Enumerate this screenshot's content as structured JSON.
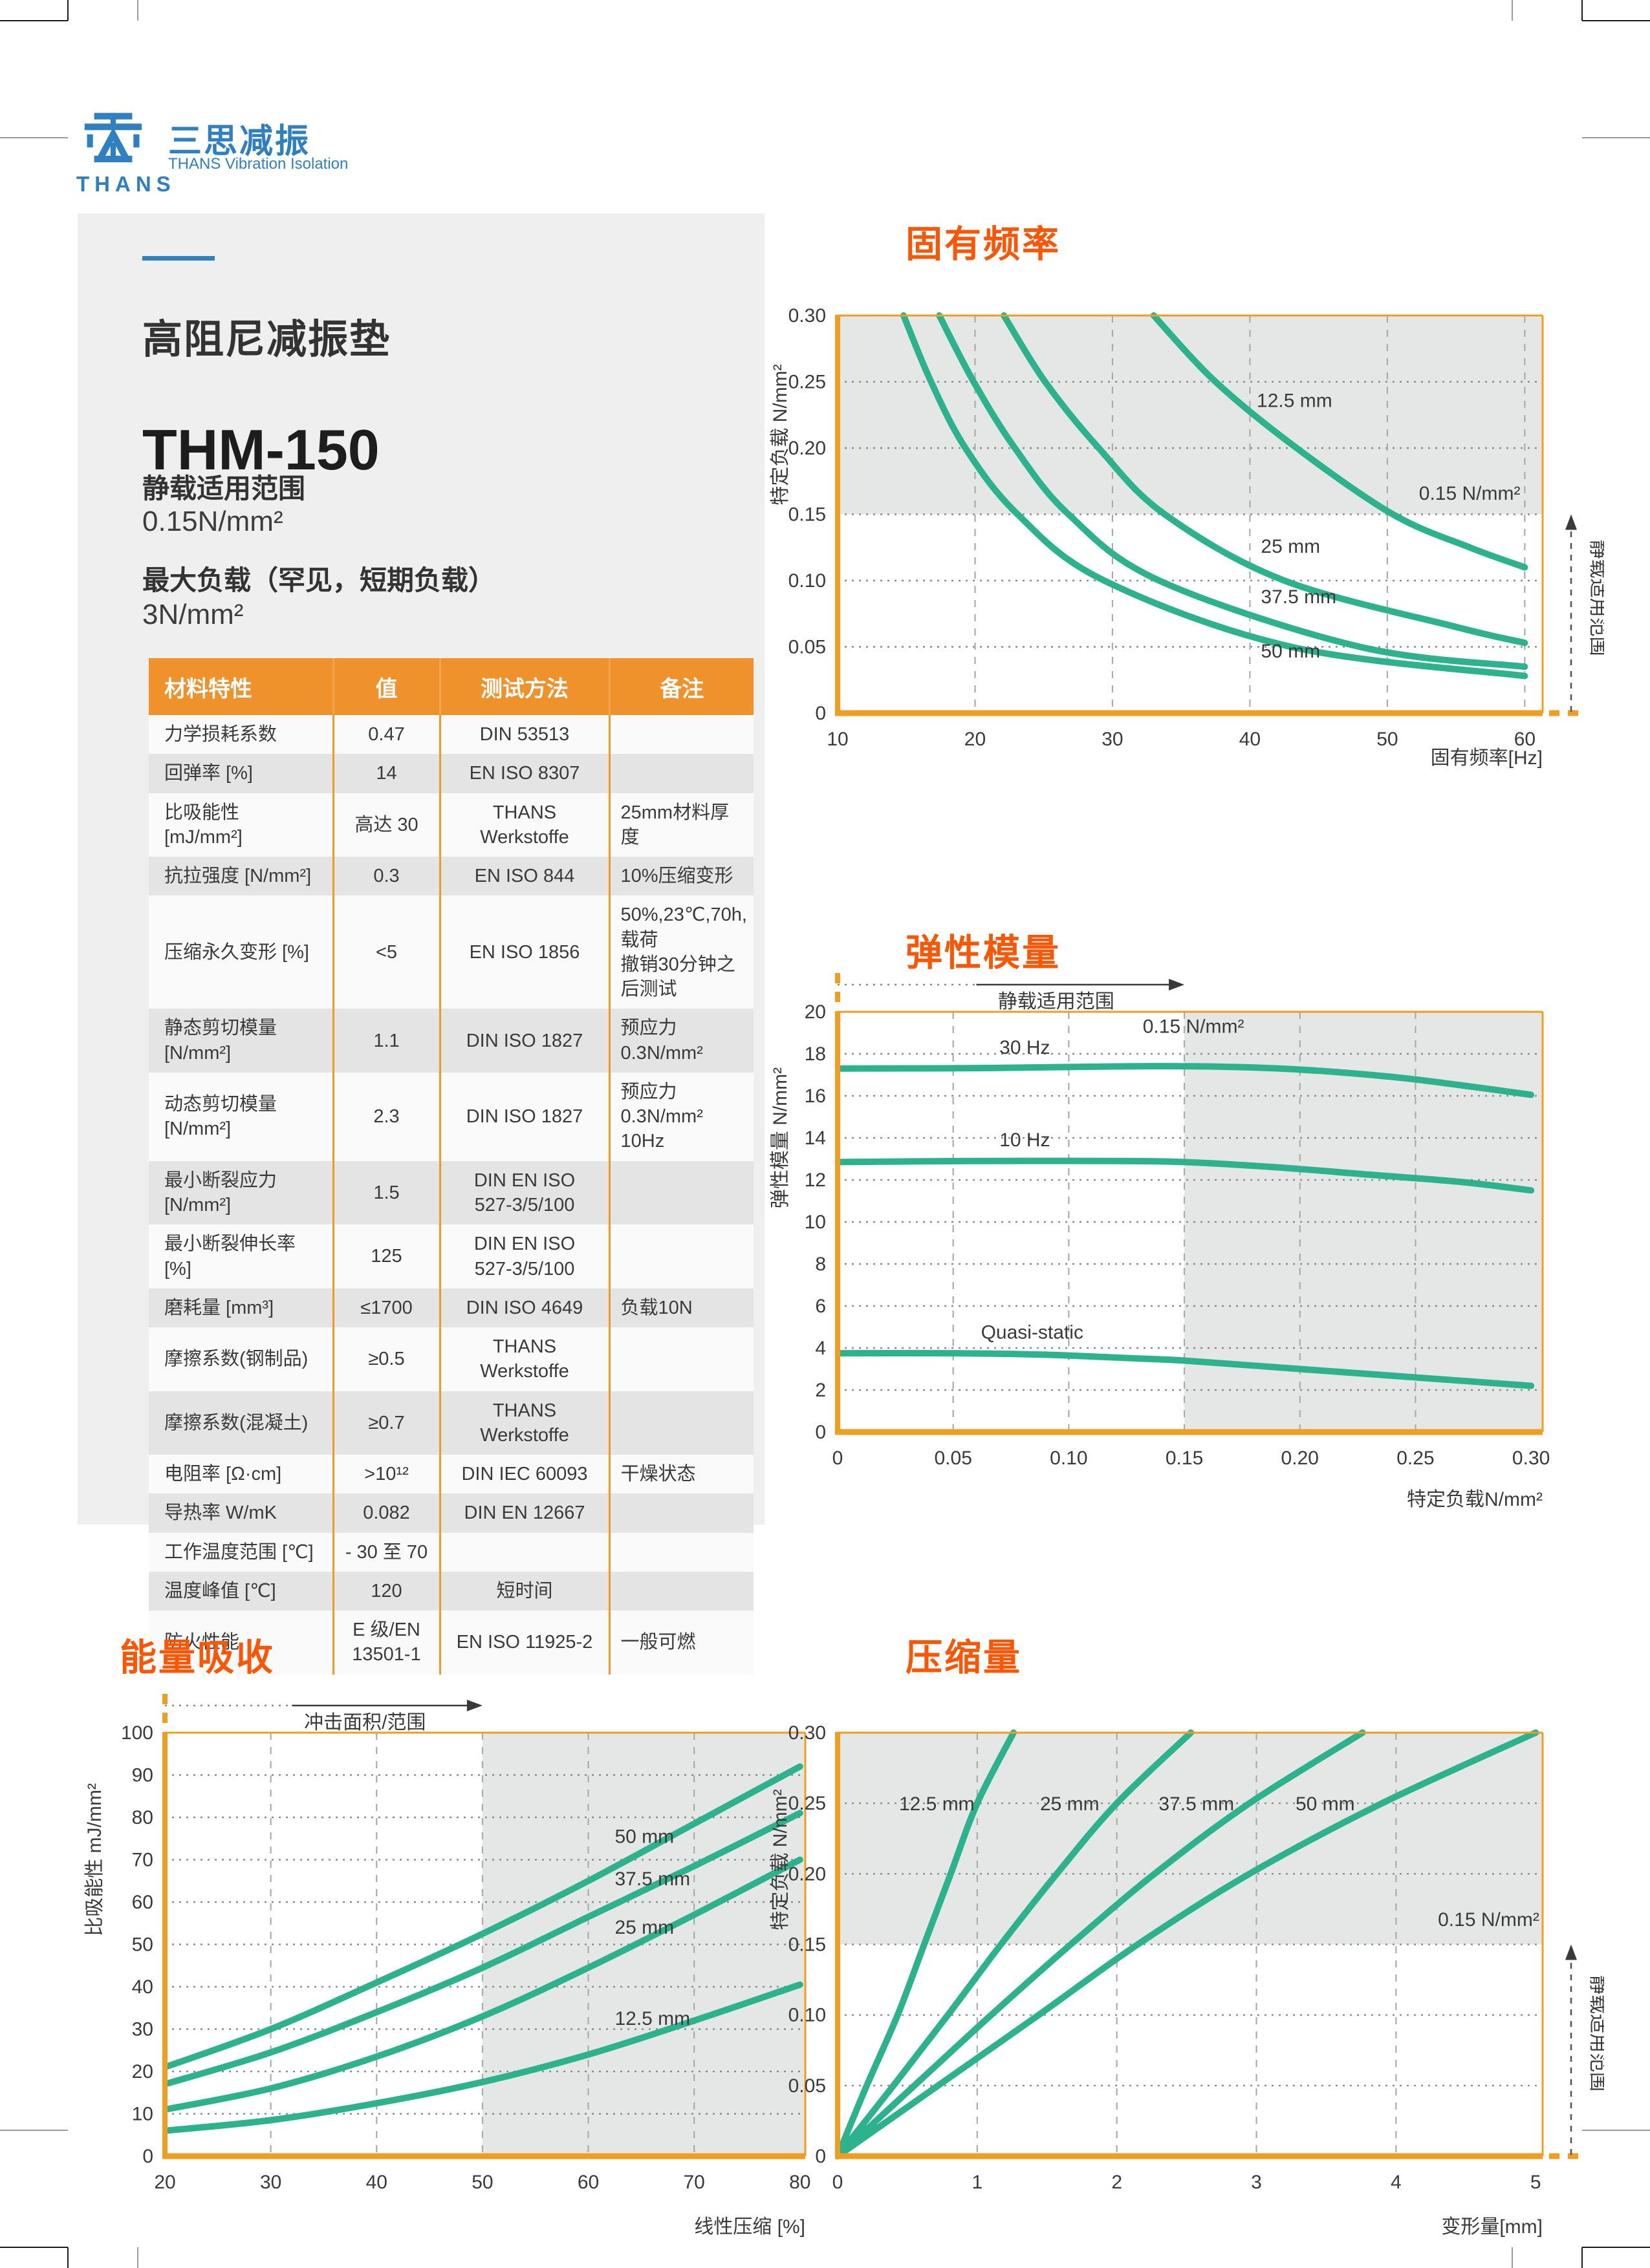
{
  "logo": {
    "thans": "THANS",
    "cn": "三思减振",
    "en": "THANS Vibration Isolation"
  },
  "product": {
    "title": "高阻尼减振垫",
    "model": "THM-150",
    "static_range_label": "静载适用范围",
    "static_range_value": "0.15N/mm²",
    "max_load_label": "最大负载（罕见，短期负载）",
    "max_load_value": "3N/mm²"
  },
  "table": {
    "headers": [
      "材料特性",
      "值",
      "测试方法",
      "备注"
    ],
    "rows": [
      [
        "力学损耗系数",
        "0.47",
        "DIN 53513",
        ""
      ],
      [
        "回弹率    [%]",
        "14",
        "EN ISO 8307",
        ""
      ],
      [
        "比吸能性  [mJ/mm²]",
        "高达 30",
        "THANS Werkstoffe",
        "25mm材料厚度"
      ],
      [
        "抗拉强度  [N/mm²]",
        "0.3",
        "EN ISO 844",
        "10%压缩变形"
      ],
      [
        "压缩永久变形  [%]",
        "<5",
        "EN ISO 1856",
        "50%,23℃,70h,载荷\n撤销30分钟之后测试"
      ],
      [
        "静态剪切模量  [N/mm²]",
        "1.1",
        "DIN ISO 1827",
        "预应力0.3N/mm²"
      ],
      [
        "动态剪切模量  [N/mm²]",
        "2.3",
        "DIN ISO 1827",
        "预应力0.3N/mm²\n10Hz"
      ],
      [
        "最小断裂应力  [N/mm²]",
        "1.5",
        "DIN EN ISO\n527-3/5/100",
        ""
      ],
      [
        "最小断裂伸长率 [%]",
        "125",
        "DIN EN ISO\n527-3/5/100",
        ""
      ],
      [
        "磨耗量 [mm³]",
        "≤1700",
        "DIN ISO 4649",
        "负载10N"
      ],
      [
        "摩擦系数(钢制品)",
        "≥0.5",
        "THANS Werkstoffe",
        ""
      ],
      [
        "摩擦系数(混凝土)",
        "≥0.7",
        "THANS Werkstoffe",
        ""
      ],
      [
        "电阻率  [Ω·cm]",
        ">10¹²",
        "DIN IEC 60093",
        "干燥状态"
      ],
      [
        "导热率 W/mK",
        "0.082",
        "DIN EN 12667",
        ""
      ],
      [
        "工作温度范围  [℃]",
        "- 30 至 70",
        "",
        ""
      ],
      [
        "温度峰值  [℃]",
        "120",
        "短时间",
        ""
      ],
      [
        "防火性能",
        "E 级/EN\n13501-1",
        "EN ISO 11925-2",
        "一般可燃"
      ]
    ]
  },
  "colors": {
    "accent": "#F95706",
    "table_header": "#F0922B",
    "axis": "#F09E1F",
    "curve": "#2DB28E",
    "shade": "#E5E7E6",
    "logo_blue": "#2E80C1",
    "panel": "#EFEFEF"
  },
  "chart_data": [
    {
      "id": "natural-frequency",
      "type": "line",
      "title": "固有频率",
      "xlabel": "固有频率[Hz]",
      "ylabel": "特定负载 N/mm²",
      "xlim": [
        10,
        61.3
      ],
      "ylim": [
        0,
        0.3
      ],
      "xticks": [
        10,
        20,
        30,
        40,
        50,
        60
      ],
      "xtick_labels": [
        "10",
        "20",
        "30",
        "40",
        "50",
        "60"
      ],
      "yticks": [
        0,
        0.05,
        0.1,
        0.15,
        0.2,
        0.25,
        0.3
      ],
      "ytick_labels": [
        "0",
        "0.05",
        "0.10",
        "0.15",
        "0.20",
        "0.25",
        "0.30"
      ],
      "grid_skip_last_x": false,
      "shade": {
        "axis": "y",
        "from": 0.15,
        "to": 0.3
      },
      "x_axis_dash_right": true,
      "y_axis_dash_top": false,
      "right_arrow": {
        "to": 0.15,
        "label": "静载适用范围"
      },
      "series": [
        {
          "name": "50 mm",
          "points": [
            [
              14.8,
              0.3
            ],
            [
              16.8,
              0.25
            ],
            [
              19.3,
              0.2
            ],
            [
              23.1,
              0.15
            ],
            [
              29.4,
              0.1
            ],
            [
              43,
              0.05
            ],
            [
              60,
              0.028
            ]
          ]
        },
        {
          "name": "37.5 mm",
          "points": [
            [
              17.4,
              0.3
            ],
            [
              19.9,
              0.25
            ],
            [
              22.9,
              0.2
            ],
            [
              26.8,
              0.15
            ],
            [
              33.4,
              0.1
            ],
            [
              48,
              0.05
            ],
            [
              60,
              0.035
            ]
          ]
        },
        {
          "name": "25 mm",
          "points": [
            [
              22.1,
              0.3
            ],
            [
              25.1,
              0.25
            ],
            [
              29.0,
              0.2
            ],
            [
              33.8,
              0.15
            ],
            [
              42.5,
              0.1
            ],
            [
              55,
              0.065
            ],
            [
              60,
              0.053
            ]
          ]
        },
        {
          "name": "12.5 mm",
          "points": [
            [
              33.0,
              0.3
            ],
            [
              37.5,
              0.25
            ],
            [
              43.4,
              0.2
            ],
            [
              50.4,
              0.15
            ],
            [
              56,
              0.125
            ],
            [
              60,
              0.11
            ]
          ]
        }
      ],
      "labels": [
        {
          "text": "12.5 mm",
          "x": 40.5,
          "y": 0.231
        },
        {
          "text": "0.15 N/mm²",
          "x": 52.3,
          "y": 0.161
        },
        {
          "text": "25 mm",
          "x": 40.8,
          "y": 0.121
        },
        {
          "text": "37.5 mm",
          "x": 40.8,
          "y": 0.083
        },
        {
          "text": "50 mm",
          "x": 40.8,
          "y": 0.042
        }
      ]
    },
    {
      "id": "elastic-modulus",
      "type": "line",
      "title": "弹性模量",
      "xlabel": "特定负载N/mm²",
      "ylabel": "弹性模量 N/mm²",
      "xlim": [
        0,
        0.305
      ],
      "ylim": [
        0,
        20
      ],
      "xticks": [
        0,
        0.05,
        0.1,
        0.15,
        0.2,
        0.25,
        0.3
      ],
      "xtick_labels": [
        "0",
        "0.05",
        "0.10",
        "0.15",
        "0.20",
        "0.25",
        "0.30"
      ],
      "yticks": [
        0,
        2,
        4,
        6,
        8,
        10,
        12,
        14,
        16,
        18,
        20
      ],
      "ytick_labels": [
        "0",
        "2",
        "4",
        "6",
        "8",
        "10",
        "12",
        "14",
        "16",
        "18",
        "20"
      ],
      "grid_skip_last_x": true,
      "shade": {
        "axis": "x",
        "from": 0.15
      },
      "x_axis_dash_right": false,
      "y_axis_dash_top": true,
      "top_arrow": {
        "to": 0.15,
        "label": "静载适用范围"
      },
      "series": [
        {
          "name": "30 Hz",
          "points": [
            [
              0,
              17.3
            ],
            [
              0.06,
              17.32
            ],
            [
              0.12,
              17.4
            ],
            [
              0.16,
              17.4
            ],
            [
              0.2,
              17.25
            ],
            [
              0.24,
              16.9
            ],
            [
              0.27,
              16.5
            ],
            [
              0.3,
              16.05
            ]
          ]
        },
        {
          "name": "10 Hz",
          "points": [
            [
              0,
              12.85
            ],
            [
              0.06,
              12.9
            ],
            [
              0.12,
              12.9
            ],
            [
              0.15,
              12.85
            ],
            [
              0.19,
              12.6
            ],
            [
              0.23,
              12.25
            ],
            [
              0.27,
              11.9
            ],
            [
              0.3,
              11.5
            ]
          ]
        },
        {
          "name": "Quasi-static",
          "points": [
            [
              0,
              3.75
            ],
            [
              0.05,
              3.75
            ],
            [
              0.09,
              3.68
            ],
            [
              0.13,
              3.5
            ],
            [
              0.15,
              3.4
            ],
            [
              0.2,
              3.0
            ],
            [
              0.25,
              2.6
            ],
            [
              0.3,
              2.2
            ]
          ]
        }
      ],
      "labels": [
        {
          "text": "0.15 N/mm²",
          "x": 0.132,
          "y": 19.0
        },
        {
          "text": "30 Hz",
          "x": 0.07,
          "y": 18.0
        },
        {
          "text": "10 Hz",
          "x": 0.07,
          "y": 13.6
        },
        {
          "text": "Quasi-static",
          "x": 0.062,
          "y": 4.45
        }
      ]
    },
    {
      "id": "energy-absorption",
      "type": "line",
      "title": "能量吸收",
      "xlabel": "线性压缩  [%]",
      "ylabel": "比吸能性 mJ/mm²",
      "xlim": [
        20,
        80.5
      ],
      "ylim": [
        0,
        100
      ],
      "xticks": [
        20,
        30,
        40,
        50,
        60,
        70,
        80
      ],
      "xtick_labels": [
        "20",
        "30",
        "40",
        "50",
        "60",
        "70",
        "80"
      ],
      "yticks": [
        0,
        10,
        20,
        30,
        40,
        50,
        60,
        70,
        80,
        90,
        100
      ],
      "ytick_labels": [
        "0",
        "10",
        "20",
        "30",
        "40",
        "50",
        "60",
        "70",
        "80",
        "90",
        "100"
      ],
      "grid_skip_last_x": true,
      "shade": {
        "axis": "x",
        "from": 50
      },
      "x_axis_dash_right": false,
      "y_axis_dash_top": true,
      "top_arrow": {
        "to": 50,
        "label": "冲击面积/范围"
      },
      "series": [
        {
          "name": "50 mm",
          "points": [
            [
              20,
              21
            ],
            [
              30,
              30
            ],
            [
              40,
              41
            ],
            [
              50,
              52.5
            ],
            [
              60,
              65
            ],
            [
              70,
              78.5
            ],
            [
              80,
              92
            ]
          ]
        },
        {
          "name": "37.5 mm",
          "points": [
            [
              20,
              17
            ],
            [
              30,
              24.5
            ],
            [
              40,
              34
            ],
            [
              50,
              44.5
            ],
            [
              60,
              56.5
            ],
            [
              70,
              68.5
            ],
            [
              80,
              81
            ]
          ]
        },
        {
          "name": "25 mm",
          "points": [
            [
              20,
              11
            ],
            [
              30,
              16
            ],
            [
              40,
              23.5
            ],
            [
              50,
              33
            ],
            [
              60,
              44.5
            ],
            [
              70,
              57
            ],
            [
              80,
              70
            ]
          ]
        },
        {
          "name": "12.5 mm",
          "points": [
            [
              20,
              6
            ],
            [
              30,
              8.5
            ],
            [
              40,
              12.5
            ],
            [
              50,
              17.5
            ],
            [
              60,
              24
            ],
            [
              70,
              32
            ],
            [
              80,
              40.5
            ]
          ]
        }
      ],
      "labels": [
        {
          "text": "50 mm",
          "x": 62.5,
          "y": 74
        },
        {
          "text": "37.5 mm",
          "x": 62.5,
          "y": 64
        },
        {
          "text": "25 mm",
          "x": 62.5,
          "y": 52.5
        },
        {
          "text": "12.5 mm",
          "x": 62.5,
          "y": 31
        }
      ]
    },
    {
      "id": "compression",
      "type": "line",
      "title": "压缩量",
      "xlabel": "变形量[mm]",
      "ylabel": "特定负载 N/mm²",
      "xlim": [
        0,
        5.05
      ],
      "ylim": [
        0,
        0.3
      ],
      "xticks": [
        0,
        1,
        2,
        3,
        4,
        5
      ],
      "xtick_labels": [
        "0",
        "1",
        "2",
        "3",
        "4",
        "5"
      ],
      "yticks": [
        0,
        0.05,
        0.1,
        0.15,
        0.2,
        0.25,
        0.3
      ],
      "ytick_labels": [
        "0",
        "0.05",
        "0.10",
        "0.15",
        "0.20",
        "0.25",
        "0.30"
      ],
      "grid_skip_last_x": true,
      "shade": {
        "axis": "y",
        "from": 0.15,
        "to": 0.3
      },
      "x_axis_dash_right": true,
      "y_axis_dash_top": false,
      "right_arrow": {
        "to": 0.15,
        "label": "静载适用范围"
      },
      "series": [
        {
          "name": "12.5 mm",
          "points": [
            [
              0,
              0
            ],
            [
              0.2,
              0.048
            ],
            [
              0.43,
              0.1
            ],
            [
              0.62,
              0.15
            ],
            [
              0.81,
              0.2
            ],
            [
              1.0,
              0.25
            ],
            [
              1.26,
              0.3
            ]
          ]
        },
        {
          "name": "25 mm",
          "points": [
            [
              0,
              0
            ],
            [
              0.4,
              0.05
            ],
            [
              0.79,
              0.1
            ],
            [
              1.17,
              0.15
            ],
            [
              1.57,
              0.2
            ],
            [
              2.0,
              0.25
            ],
            [
              2.53,
              0.3
            ]
          ]
        },
        {
          "name": "37.5 mm",
          "points": [
            [
              0,
              0
            ],
            [
              0.55,
              0.05
            ],
            [
              1.1,
              0.1
            ],
            [
              1.67,
              0.15
            ],
            [
              2.27,
              0.2
            ],
            [
              2.95,
              0.25
            ],
            [
              3.76,
              0.3
            ]
          ]
        },
        {
          "name": "50 mm",
          "points": [
            [
              0,
              0
            ],
            [
              0.72,
              0.05
            ],
            [
              1.44,
              0.1
            ],
            [
              2.15,
              0.15
            ],
            [
              2.95,
              0.2
            ],
            [
              3.9,
              0.25
            ],
            [
              5.0,
              0.3
            ]
          ]
        }
      ],
      "labels": [
        {
          "text": "12.5 mm",
          "x": 0.44,
          "y": 0.245
        },
        {
          "text": "25 mm",
          "x": 1.45,
          "y": 0.245
        },
        {
          "text": "37.5 mm",
          "x": 2.3,
          "y": 0.245
        },
        {
          "text": "50 mm",
          "x": 3.28,
          "y": 0.245
        },
        {
          "text": "0.15 N/mm²",
          "x": 4.3,
          "y": 0.163
        }
      ]
    }
  ]
}
